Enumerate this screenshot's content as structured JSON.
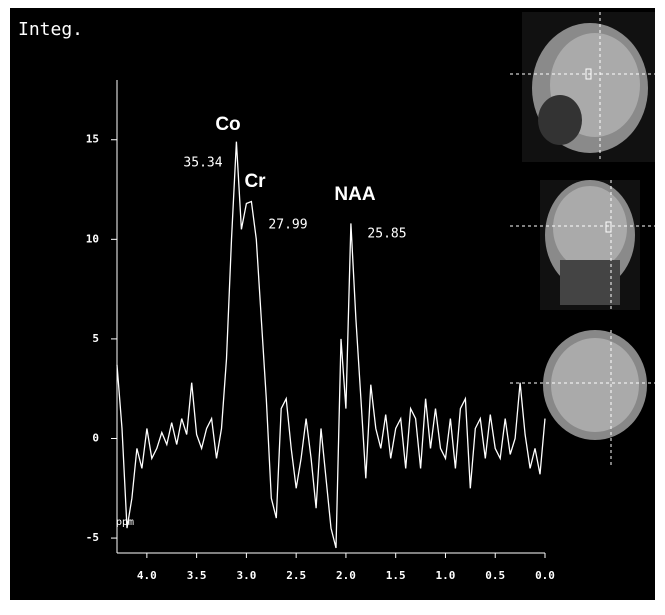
{
  "chart_data": {
    "type": "line",
    "ylabel": "Integ.",
    "xlabel": "ppm",
    "color": "#ffffff",
    "x": [
      4.3,
      4.25,
      4.2,
      4.15,
      4.1,
      4.05,
      4.0,
      3.95,
      3.9,
      3.85,
      3.8,
      3.75,
      3.7,
      3.65,
      3.6,
      3.55,
      3.5,
      3.45,
      3.4,
      3.35,
      3.3,
      3.25,
      3.2,
      3.15,
      3.1,
      3.05,
      3.0,
      2.95,
      2.9,
      2.85,
      2.8,
      2.75,
      2.7,
      2.65,
      2.6,
      2.55,
      2.5,
      2.45,
      2.4,
      2.35,
      2.3,
      2.25,
      2.2,
      2.15,
      2.1,
      2.05,
      2.0,
      1.95,
      1.9,
      1.85,
      1.8,
      1.75,
      1.7,
      1.65,
      1.6,
      1.55,
      1.5,
      1.45,
      1.4,
      1.35,
      1.3,
      1.25,
      1.2,
      1.15,
      1.1,
      1.05,
      1.0,
      0.95,
      0.9,
      0.85,
      0.8,
      0.75,
      0.7,
      0.65,
      0.6,
      0.55,
      0.5,
      0.45,
      0.4,
      0.35,
      0.3,
      0.25,
      0.2,
      0.15,
      0.1,
      0.05,
      0.0
    ],
    "values": [
      3.7,
      0.5,
      -4.5,
      -3.0,
      -0.5,
      -1.5,
      0.5,
      -1.0,
      -0.5,
      0.3,
      -0.3,
      0.8,
      -0.3,
      1.0,
      0.2,
      2.8,
      0.2,
      -0.5,
      0.5,
      1.0,
      -1.0,
      0.5,
      4,
      10,
      14.9,
      10.5,
      11.8,
      11.9,
      10,
      6,
      2,
      -3,
      -4,
      1.5,
      2.0,
      -0.5,
      -2.5,
      -1,
      1.0,
      -1.0,
      -3.5,
      0.5,
      -2,
      -4.5,
      -5.5,
      5,
      1.5,
      10.8,
      6,
      2,
      -2,
      2.7,
      0.5,
      -0.5,
      1.2,
      -1.0,
      0.5,
      1.0,
      -1.5,
      1.5,
      1.0,
      -1.5,
      2.0,
      -0.5,
      1.5,
      -0.5,
      -1.0,
      1.0,
      -1.5,
      1.5,
      2.0,
      -2.5,
      0.5,
      1.0,
      -1.0,
      1.2,
      -0.5,
      -1.0,
      1.0,
      -0.8,
      0.0,
      2.8,
      0.2,
      -1.5,
      -0.5,
      -1.8,
      1.0
    ],
    "xlim": [
      4.3,
      0.0
    ],
    "ylim": [
      -5.75,
      18
    ],
    "xticks": [
      {
        "value": 4,
        "label": "4.0"
      },
      3.5,
      {
        "value": 3,
        "label": "3.0"
      },
      2.5,
      {
        "value": 2,
        "label": "2.0"
      },
      1.5,
      {
        "value": 1,
        "label": "1.0"
      },
      0.5,
      {
        "value": 0,
        "label": "0.0"
      }
    ],
    "yticks": [
      -5,
      0,
      5,
      10,
      15
    ],
    "annotations": [
      {
        "label": "Co",
        "value": 35.34
      },
      {
        "label": "Cr",
        "value": 27.99
      },
      {
        "label": "NAA",
        "value": 25.85
      }
    ]
  }
}
